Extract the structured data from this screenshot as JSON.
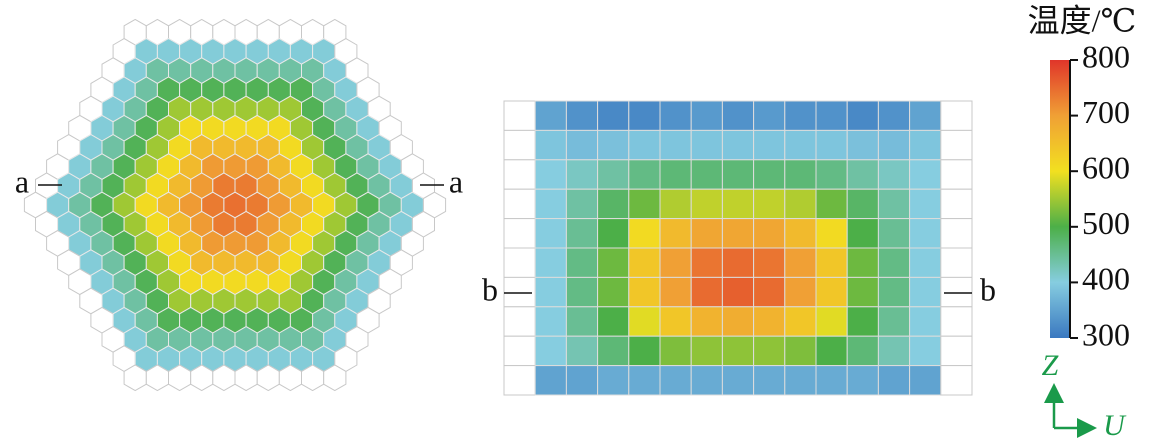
{
  "chart_data": {
    "type": "heatmap",
    "colorbar": {
      "title": "温度/℃",
      "lim": [
        300,
        800
      ],
      "ticks": [
        300,
        400,
        500,
        600,
        700,
        800
      ],
      "colors": [
        "#3a78c0",
        "#86cde0",
        "#4caf48",
        "#f2e020",
        "#f0a035",
        "#e0352a"
      ]
    },
    "hex_map": {
      "rings": 10,
      "ring_values": [
        745,
        735,
        705,
        660,
        610,
        550,
        490,
        440,
        405,
        null
      ],
      "left_label": "a",
      "right_label": "a"
    },
    "grid_map": {
      "left_label": "b",
      "right_label": "b",
      "values": [
        [
          null,
          350,
          330,
          320,
          320,
          330,
          340,
          330,
          340,
          330,
          330,
          320,
          330,
          350,
          null
        ],
        [
          null,
          390,
          380,
          385,
          390,
          390,
          390,
          390,
          390,
          390,
          390,
          385,
          380,
          390,
          null
        ],
        [
          null,
          400,
          420,
          440,
          460,
          470,
          470,
          470,
          470,
          470,
          460,
          440,
          420,
          400,
          null
        ],
        [
          null,
          400,
          440,
          480,
          520,
          560,
          570,
          570,
          570,
          560,
          520,
          480,
          440,
          400,
          null
        ],
        [
          null,
          400,
          450,
          500,
          610,
          660,
          690,
          690,
          690,
          660,
          610,
          500,
          450,
          400,
          null
        ],
        [
          null,
          400,
          460,
          520,
          640,
          700,
          740,
          750,
          740,
          700,
          640,
          520,
          460,
          400,
          null
        ],
        [
          null,
          400,
          460,
          520,
          640,
          700,
          750,
          760,
          750,
          700,
          640,
          520,
          460,
          400,
          null
        ],
        [
          null,
          400,
          450,
          500,
          590,
          640,
          670,
          680,
          670,
          640,
          590,
          500,
          450,
          400,
          null
        ],
        [
          null,
          400,
          430,
          470,
          500,
          530,
          540,
          540,
          540,
          530,
          500,
          470,
          430,
          400,
          null
        ],
        [
          null,
          350,
          350,
          360,
          360,
          360,
          360,
          360,
          360,
          360,
          360,
          360,
          350,
          350,
          null
        ]
      ]
    },
    "axes_labels": {
      "vertical": "Z",
      "horizontal": "U"
    }
  }
}
